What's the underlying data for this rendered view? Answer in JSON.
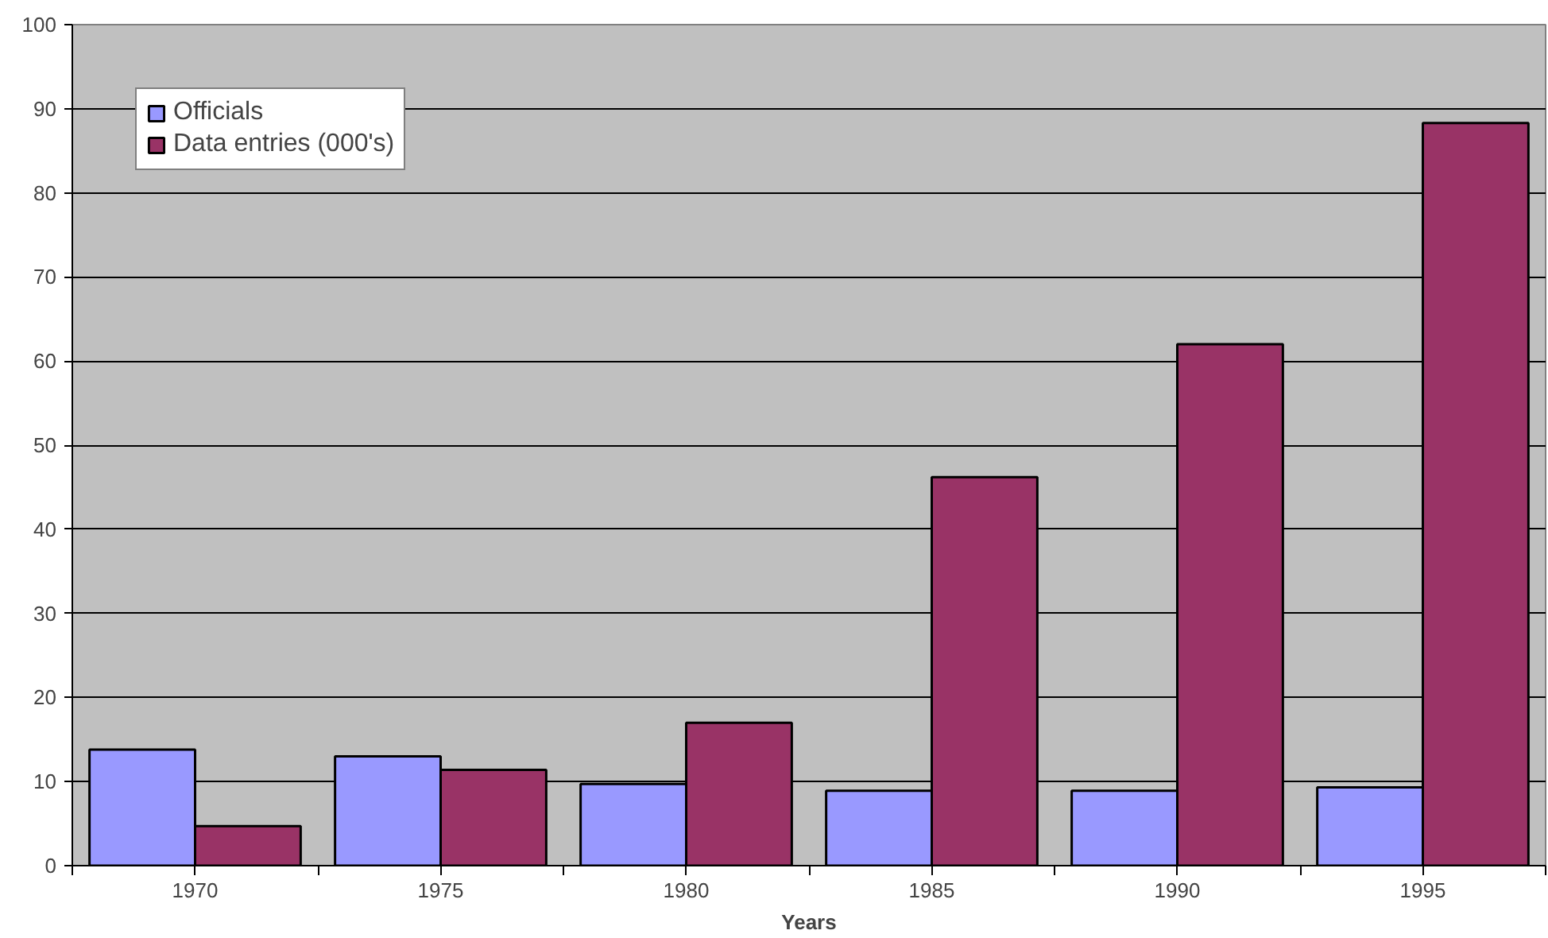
{
  "chart_data": {
    "type": "bar",
    "xlabel": "Years",
    "categories": [
      "1970",
      "1975",
      "1980",
      "1985",
      "1990",
      "1995"
    ],
    "series": [
      {
        "name": "Officials",
        "color": "#9999ff",
        "values": [
          13.8,
          13,
          9.7,
          8.9,
          8.9,
          9.3
        ]
      },
      {
        "name": "Data entries (000's)",
        "color": "#993366",
        "values": [
          4.7,
          11.4,
          17,
          46.2,
          62,
          88.3
        ]
      }
    ],
    "ylim": [
      0,
      100
    ],
    "yticks": [
      0,
      10,
      20,
      30,
      40,
      50,
      60,
      70,
      80,
      90,
      100
    ],
    "grid": "y",
    "legend": "top left"
  }
}
